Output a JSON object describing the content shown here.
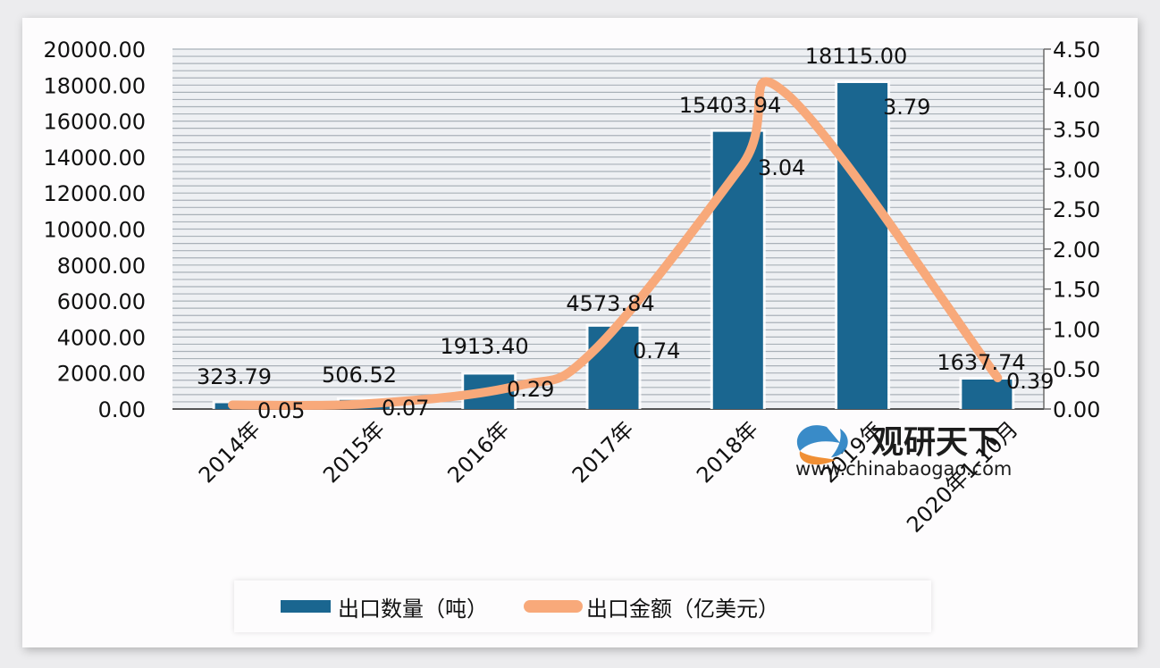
{
  "chart_data": {
    "type": "bar+line",
    "title": "",
    "categories": [
      "2014年",
      "2015年",
      "2016年",
      "2017年",
      "2018年",
      "2019年",
      "2020年1-10月"
    ],
    "series": [
      {
        "name": "出口数量（吨）",
        "type": "bar",
        "axis": "left",
        "color": "#1a6690",
        "values": [
          323.79,
          506.52,
          1913.4,
          4573.84,
          15403.94,
          18115.0,
          1637.74
        ],
        "labels": [
          "323.79",
          "506.52",
          "1913.40",
          "4573.84",
          "15403.94",
          "18115.00",
          "1637.74"
        ]
      },
      {
        "name": "出口金额（亿美元）",
        "type": "line",
        "axis": "right",
        "color": "#f8a97a",
        "values": [
          0.05,
          0.07,
          0.29,
          0.74,
          3.04,
          3.79,
          0.39
        ],
        "labels": [
          "0.05",
          "0.07",
          "0.29",
          "0.74",
          "3.04",
          "3.79",
          "0.39"
        ]
      }
    ],
    "left_axis": {
      "ylim": [
        0,
        20000
      ],
      "ticks": [
        "20000.00",
        "18000.00",
        "16000.00",
        "14000.00",
        "12000.00",
        "10000.00",
        "8000.00",
        "6000.00",
        "4000.00",
        "2000.00",
        "0.00"
      ]
    },
    "right_axis": {
      "ylim": [
        0,
        4.5
      ],
      "ticks": [
        "4.50",
        "4.00",
        "3.50",
        "3.00",
        "2.50",
        "2.00",
        "1.50",
        "1.00",
        "0.50",
        "0.00"
      ]
    },
    "grid": true,
    "legend_position": "bottom"
  },
  "legend": {
    "bar_label": "出口数量（吨）",
    "line_label": "出口金额（亿美元）"
  },
  "watermark": {
    "brand": "观研天下",
    "url": "www.chinabaogao.com"
  }
}
